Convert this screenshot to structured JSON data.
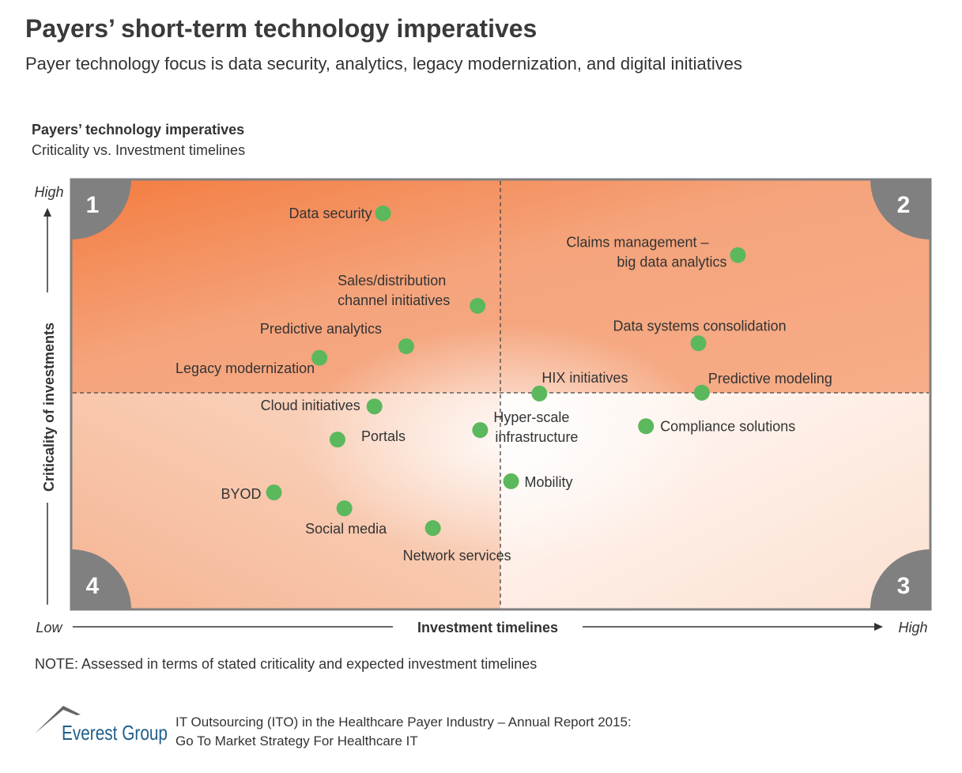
{
  "header": {
    "title": "Payers’ short-term technology imperatives",
    "subtitle": "Payer technology focus is data security, analytics, legacy modernization, and digital initiatives"
  },
  "chart_data": {
    "type": "scatter",
    "title": "Payers’ technology imperatives",
    "subtitle": "Criticality vs. Investment timelines",
    "xlabel": "Investment timelines",
    "ylabel": "Criticality of investments",
    "x_low_label": "Low",
    "x_high_label": "High",
    "y_high_label": "High",
    "xlim": [
      0,
      100
    ],
    "ylim": [
      0,
      100
    ],
    "quadrant_dividers": {
      "x": 50,
      "y": 50
    },
    "quadrant_labels": [
      "1",
      "2",
      "3",
      "4"
    ],
    "grid": false,
    "colors": {
      "point": "#5cb85c",
      "quadrant_badge": "#808080",
      "high_high": "#f37f45",
      "low_low": "#fde6d9"
    },
    "points": [
      {
        "label": [
          "Data security"
        ],
        "x": 36.3,
        "y": 92.1
      },
      {
        "label": [
          "Claims management –",
          "big data analytics"
        ],
        "x": 77.6,
        "y": 82.4
      },
      {
        "label": [
          "Sales/distribution",
          "channel initiatives"
        ],
        "x": 47.3,
        "y": 70.6
      },
      {
        "label": [
          "Predictive analytics"
        ],
        "x": 39.0,
        "y": 61.2
      },
      {
        "label": [
          "Legacy modernization"
        ],
        "x": 28.9,
        "y": 58.5
      },
      {
        "label": [
          "Data systems consolidation"
        ],
        "x": 73.0,
        "y": 61.9
      },
      {
        "label": [
          "HIX initiatives"
        ],
        "x": 54.5,
        "y": 50.2
      },
      {
        "label": [
          "Predictive modeling"
        ],
        "x": 73.4,
        "y": 50.4
      },
      {
        "label": [
          "Cloud initiatives"
        ],
        "x": 35.3,
        "y": 47.2
      },
      {
        "label": [
          "Portals"
        ],
        "x": 31.0,
        "y": 39.5
      },
      {
        "label": [
          "Hyper-scale",
          "infrastructure"
        ],
        "x": 47.6,
        "y": 41.7
      },
      {
        "label": [
          "Compliance solutions"
        ],
        "x": 66.9,
        "y": 42.6
      },
      {
        "label": [
          "Mobility"
        ],
        "x": 51.2,
        "y": 29.8
      },
      {
        "label": [
          "BYOD"
        ],
        "x": 23.6,
        "y": 27.2
      },
      {
        "label": [
          "Social media"
        ],
        "x": 31.8,
        "y": 23.5
      },
      {
        "label": [
          "Network services"
        ],
        "x": 42.1,
        "y": 18.9
      }
    ]
  },
  "note": "NOTE: Assessed in terms of stated criticality and expected investment timelines",
  "footer": {
    "logo_text": "Everest Group",
    "report_line1": "IT Outsourcing (ITO) in the Healthcare Payer Industry – Annual Report 2015:",
    "report_line2": "Go To Market Strategy For Healthcare IT"
  }
}
